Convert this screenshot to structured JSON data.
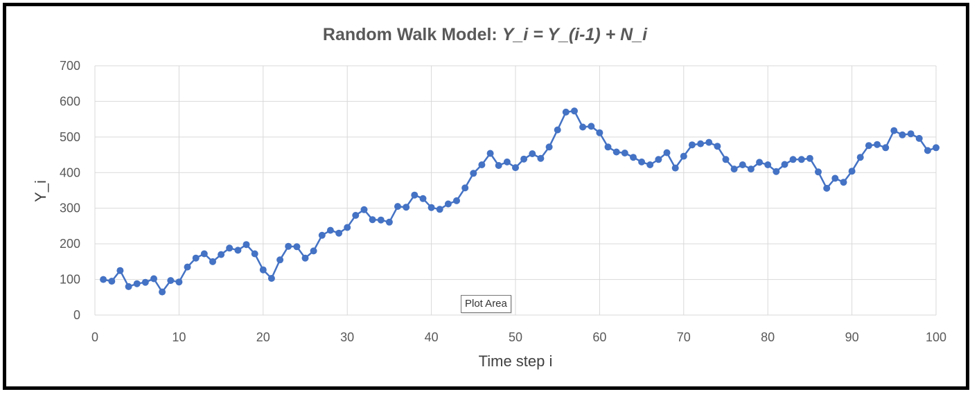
{
  "title_prefix": "Random Walk Model: ",
  "title_formula": "Y_i = Y_(i-1) + N_i",
  "tooltip": "Plot Area",
  "colors": {
    "series": "#4472C4",
    "grid": "#D9D9D9",
    "text": "#595959"
  },
  "chart_data": {
    "type": "line",
    "title": "Random Walk Model: Y_i = Y_(i-1) + N_i",
    "xlabel": "Time step i",
    "ylabel": "Y_i",
    "xlim": [
      0,
      100
    ],
    "ylim": [
      0,
      700
    ],
    "x_ticks": [
      0,
      10,
      20,
      30,
      40,
      50,
      60,
      70,
      80,
      90,
      100
    ],
    "y_ticks": [
      0,
      100,
      200,
      300,
      400,
      500,
      600,
      700
    ],
    "grid": true,
    "markers": true,
    "x": [
      1,
      2,
      3,
      4,
      5,
      6,
      7,
      8,
      9,
      10,
      11,
      12,
      13,
      14,
      15,
      16,
      17,
      18,
      19,
      20,
      21,
      22,
      23,
      24,
      25,
      26,
      27,
      28,
      29,
      30,
      31,
      32,
      33,
      34,
      35,
      36,
      37,
      38,
      39,
      40,
      41,
      42,
      43,
      44,
      45,
      46,
      47,
      48,
      49,
      50,
      51,
      52,
      53,
      54,
      55,
      56,
      57,
      58,
      59,
      60,
      61,
      62,
      63,
      64,
      65,
      66,
      67,
      68,
      69,
      70,
      71,
      72,
      73,
      74,
      75,
      76,
      77,
      78,
      79,
      80,
      81,
      82,
      83,
      84,
      85,
      86,
      87,
      88,
      89,
      90,
      91,
      92,
      93,
      94,
      95,
      96,
      97,
      98,
      99,
      100
    ],
    "y": [
      100,
      95,
      125,
      80,
      88,
      92,
      102,
      65,
      97,
      93,
      135,
      160,
      172,
      150,
      170,
      188,
      182,
      198,
      172,
      127,
      103,
      155,
      193,
      192,
      160,
      180,
      224,
      238,
      230,
      246,
      280,
      296,
      268,
      267,
      261,
      305,
      303,
      337,
      327,
      302,
      297,
      312,
      321,
      357,
      398,
      422,
      454,
      420,
      430,
      414,
      438,
      453,
      440,
      472,
      520,
      570,
      573,
      528,
      530,
      512,
      472,
      458,
      455,
      443,
      430,
      422,
      437,
      456,
      413,
      446,
      478,
      481,
      485,
      474,
      437,
      410,
      422,
      410,
      429,
      422,
      403,
      423,
      437,
      437,
      440,
      402,
      356,
      384,
      373,
      404,
      443,
      476,
      479,
      470,
      518,
      506,
      509,
      496,
      462,
      470
    ]
  }
}
